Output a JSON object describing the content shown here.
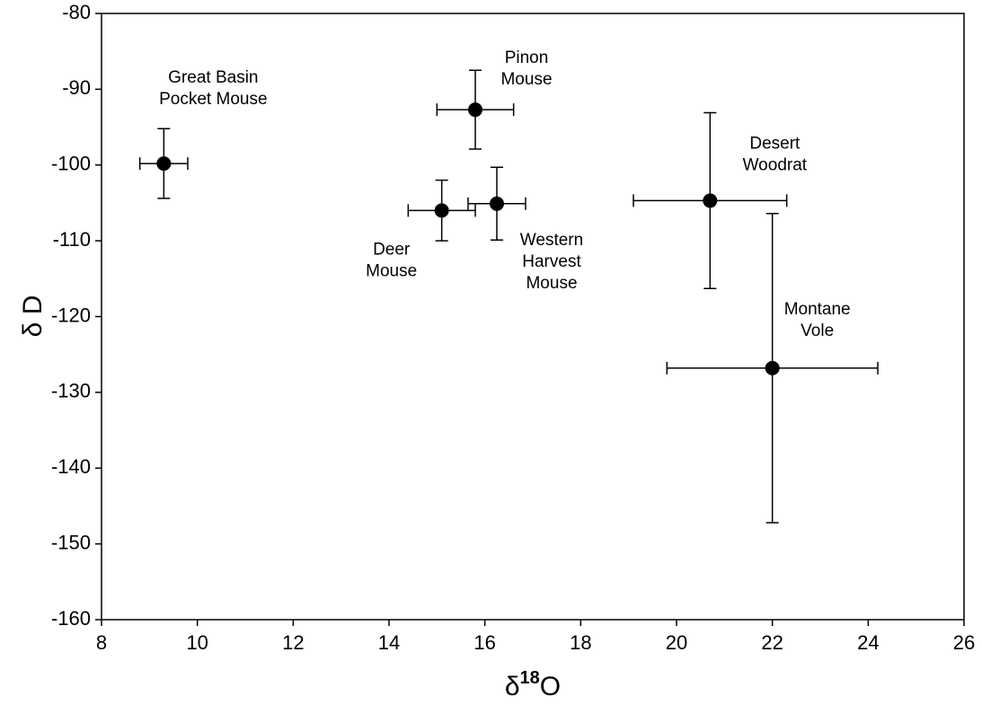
{
  "chart_data": {
    "type": "scatter",
    "xlabel": {
      "symbol": "δ",
      "sup": "18",
      "rest": "O"
    },
    "ylabel": "δ D",
    "xlim": [
      8,
      26
    ],
    "xticks": [
      8,
      10,
      12,
      14,
      16,
      18,
      20,
      22,
      24,
      26
    ],
    "ylim": [
      -160,
      -80
    ],
    "yticks": [
      -160,
      -150,
      -140,
      -130,
      -120,
      -110,
      -100,
      -90,
      -80
    ],
    "color": "#000000",
    "points": [
      {
        "label": [
          "Great Basin",
          "Pocket Mouse"
        ],
        "x": 9.3,
        "y": -99.8,
        "xerr": 0.5,
        "yerr": 4.6
      },
      {
        "label": [
          "Pinon",
          "Mouse"
        ],
        "x": 15.8,
        "y": -92.7,
        "xerr": 0.8,
        "yerr": 5.2
      },
      {
        "label": [
          "Deer",
          "Mouse"
        ],
        "x": 15.1,
        "y": -106.0,
        "xerr": 0.7,
        "yerr": 4.0
      },
      {
        "label": [
          "Western",
          "Harvest",
          "Mouse"
        ],
        "x": 16.25,
        "y": -105.1,
        "xerr": 0.6,
        "yerr": 4.8
      },
      {
        "label": [
          "Desert",
          "Woodrat"
        ],
        "x": 20.7,
        "y": -104.7,
        "xerr": 1.6,
        "yerr": 11.6
      },
      {
        "label": [
          "Montane",
          "Vole"
        ],
        "x": 22.0,
        "y": -126.8,
        "xerr": 2.2,
        "yerr": 20.4
      }
    ]
  }
}
